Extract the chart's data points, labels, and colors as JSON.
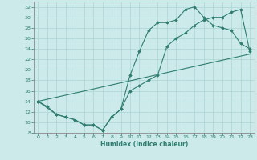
{
  "xlabel": "Humidex (Indice chaleur)",
  "background_color": "#cceaea",
  "line_color": "#2e7d6e",
  "grid_color": "#aad4d4",
  "xlim": [
    -0.5,
    23.5
  ],
  "ylim": [
    8,
    33
  ],
  "xticks": [
    0,
    1,
    2,
    3,
    4,
    5,
    6,
    7,
    8,
    9,
    10,
    11,
    12,
    13,
    14,
    15,
    16,
    17,
    18,
    19,
    20,
    21,
    22,
    23
  ],
  "yticks": [
    8,
    10,
    12,
    14,
    16,
    18,
    20,
    22,
    24,
    26,
    28,
    30,
    32
  ],
  "line1_x": [
    0,
    1,
    2,
    3,
    4,
    5,
    6,
    7,
    8,
    9,
    10,
    11,
    12,
    13,
    14,
    15,
    16,
    17,
    18,
    19,
    20,
    21,
    22,
    23
  ],
  "line1_y": [
    14,
    13,
    11.5,
    11,
    10.5,
    9.5,
    9.5,
    8.5,
    11,
    12.5,
    19,
    23.5,
    27.5,
    29,
    29,
    29.5,
    31.5,
    32,
    30,
    28.5,
    28,
    27.5,
    25,
    24
  ],
  "line2_x": [
    0,
    2,
    3,
    4,
    5,
    6,
    7,
    8,
    9,
    10,
    11,
    12,
    13,
    14,
    15,
    16,
    17,
    18,
    19,
    20,
    21,
    22,
    23
  ],
  "line2_y": [
    14,
    11.5,
    11,
    10.5,
    9.5,
    9.5,
    8.5,
    11,
    12.5,
    16,
    17,
    18,
    19,
    24.5,
    26,
    27,
    28.5,
    29.5,
    30,
    30,
    31,
    31.5,
    23.5
  ],
  "line3_x": [
    0,
    23
  ],
  "line3_y": [
    14,
    23
  ]
}
